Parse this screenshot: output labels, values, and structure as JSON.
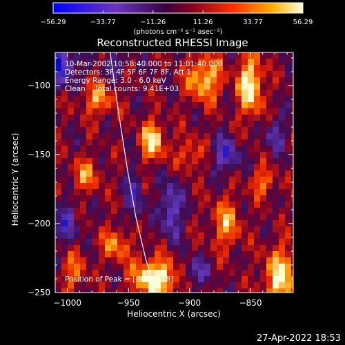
{
  "chart_data": {
    "type": "heatmap",
    "title": "Reconstructed RHESSI Image",
    "xlabel": "Heliocentric X (arcsec)",
    "ylabel": "Heliocentric Y (arcsec)",
    "xlim": [
      -1010,
      -815
    ],
    "ylim": [
      -250,
      -76
    ],
    "x_ticks": [
      -1000,
      -950,
      -900,
      -850
    ],
    "y_ticks": [
      -100,
      -150,
      -200,
      -250
    ],
    "x_tick_labels": [
      "−1000",
      "−950",
      "−900",
      "−850"
    ],
    "y_tick_labels": [
      "−100",
      "−150",
      "−200",
      "−250"
    ],
    "colorbar": {
      "min": -56.29,
      "max": 56.29,
      "tick_values": [
        -56.29,
        -33.77,
        -11.26,
        11.26,
        33.77,
        56.29
      ],
      "tick_labels": [
        "−56.29",
        "−33.77",
        "−11.26",
        "11.26",
        "33.77",
        "56.29"
      ],
      "units_label": "(photons cm⁻² s⁻¹ asec⁻²)"
    },
    "annotations": [
      "10-Mar-2002 10:58:40.000 to 11:01:40.000",
      "Detectors: 3F 4F 5F 6F 7F 8F, Att 1",
      "Energy Range: 3.0 - 6.0 keV",
      "Clean    Total counts: 9.41E+03"
    ],
    "peak_label": "Position of Peak = [-932,-118]",
    "limb_curve": [
      [
        -965,
        -76
      ],
      [
        -958,
        -120
      ],
      [
        -951,
        -160
      ],
      [
        -944,
        -195
      ],
      [
        -936,
        -225
      ],
      [
        -928,
        -250
      ]
    ]
  },
  "footer": {
    "timestamp": "27-Apr-2022 18:53"
  }
}
